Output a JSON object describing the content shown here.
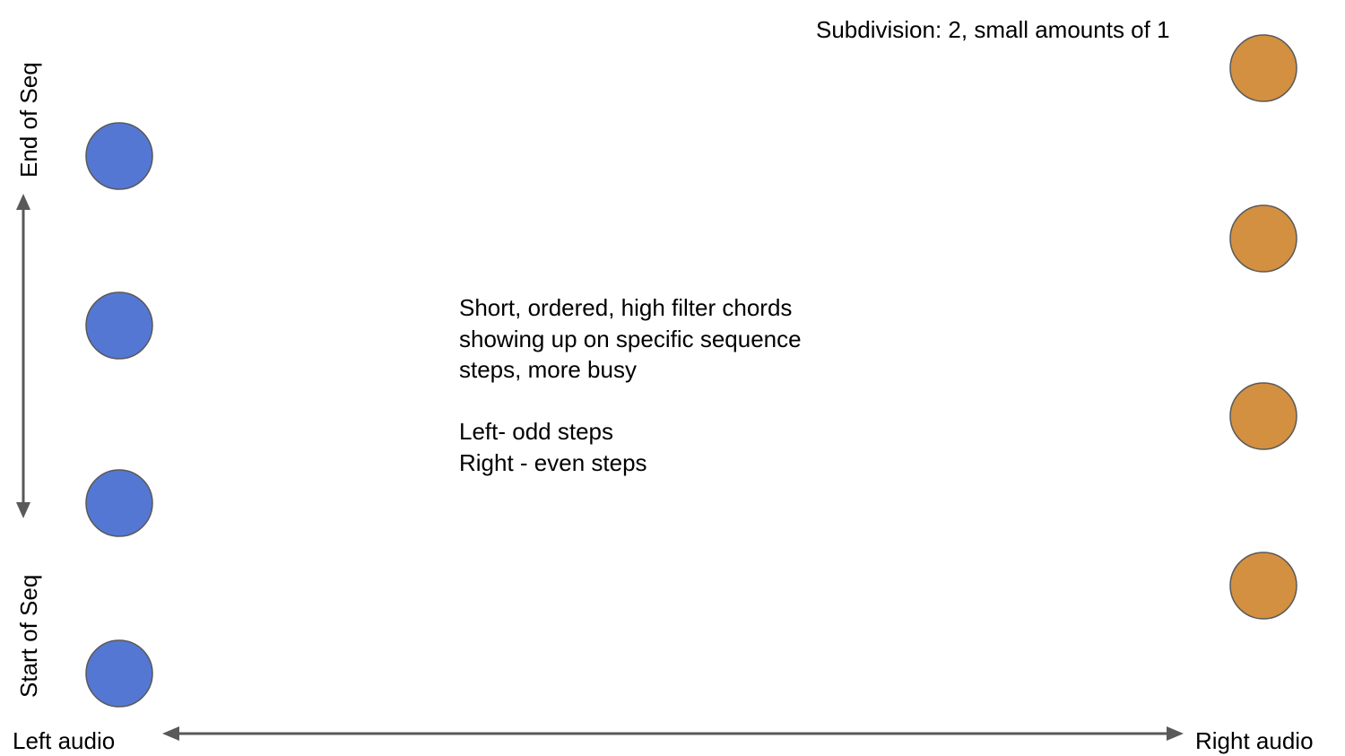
{
  "subdivision_note": "Subdivision: 2, small amounts of 1",
  "description": {
    "lines": [
      "Short, ordered, high filter chords",
      "showing up on specific sequence",
      "steps, more busy",
      "",
      "Left- odd steps",
      "Right - even steps"
    ]
  },
  "axes": {
    "x_left_label": "Left audio",
    "x_right_label": "Right audio",
    "y_top_label": "End of Seq",
    "y_bottom_label": "Start of Seq"
  },
  "colors": {
    "left_dot": "#5577d4",
    "right_dot": "#d39040",
    "dot_stroke": "#595959",
    "axis": "#595959"
  },
  "left_dots_count": 4,
  "right_dots_count": 4
}
